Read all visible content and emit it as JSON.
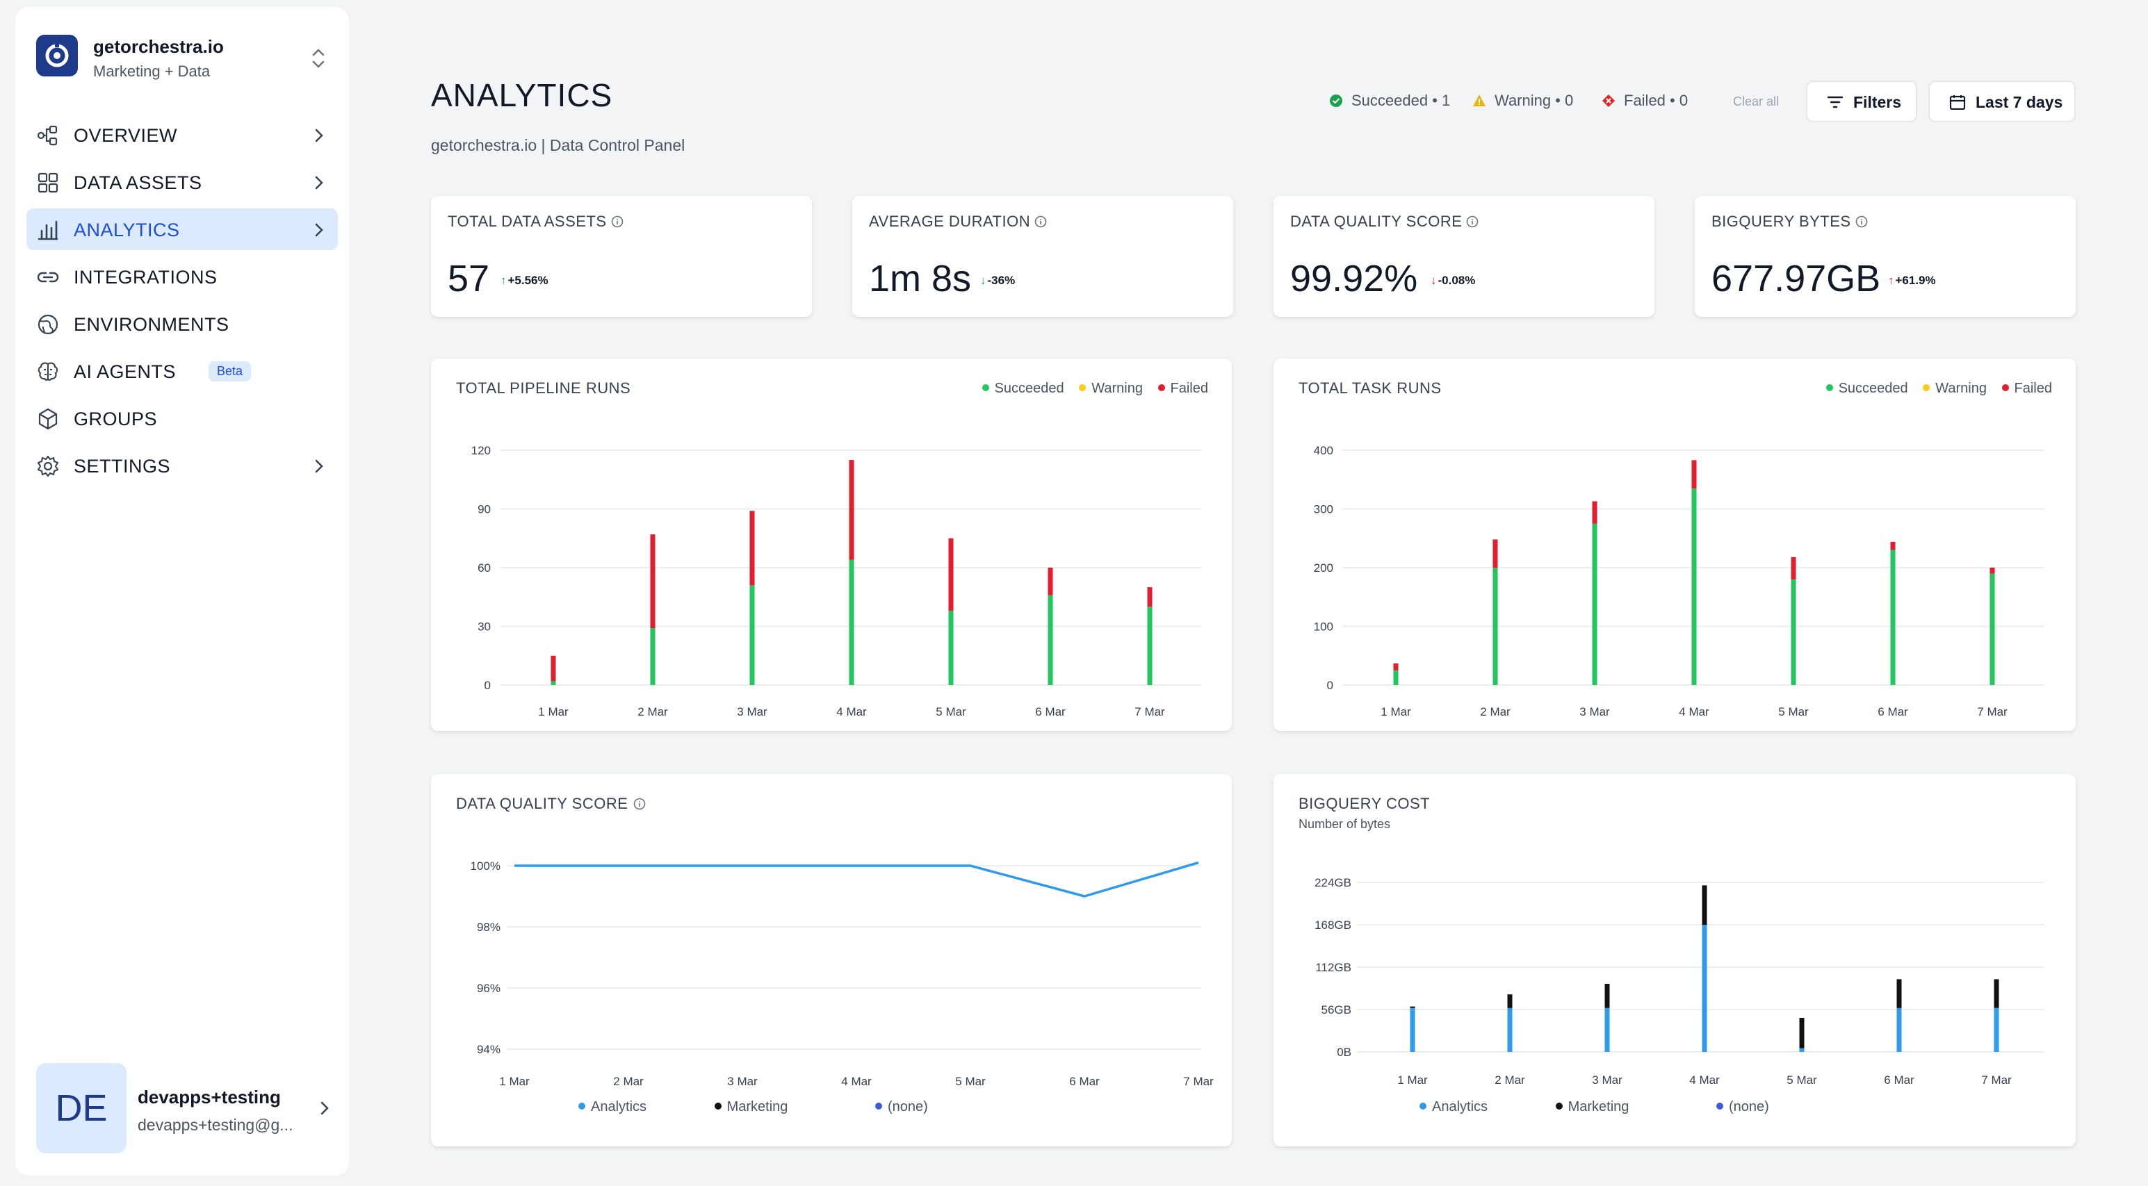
{
  "workspace": {
    "name": "getorchestra.io",
    "subtitle": "Marketing + Data"
  },
  "nav": [
    {
      "label": "OVERVIEW",
      "icon": "workflow-icon",
      "chevron": true,
      "active": false
    },
    {
      "label": "DATA ASSETS",
      "icon": "grid-icon",
      "chevron": true,
      "active": false
    },
    {
      "label": "ANALYTICS",
      "icon": "bar-chart-icon",
      "chevron": true,
      "active": true
    },
    {
      "label": "INTEGRATIONS",
      "icon": "link-icon",
      "chevron": false,
      "active": false
    },
    {
      "label": "ENVIRONMENTS",
      "icon": "globe-icon",
      "chevron": false,
      "active": false
    },
    {
      "label": "AI AGENTS",
      "icon": "brain-icon",
      "chevron": false,
      "active": false,
      "badge": "Beta"
    },
    {
      "label": "GROUPS",
      "icon": "cube-icon",
      "chevron": false,
      "active": false
    },
    {
      "label": "SETTINGS",
      "icon": "gear-icon",
      "chevron": true,
      "active": false
    }
  ],
  "user": {
    "initials": "DE",
    "name": "devapps+testing",
    "email": "devapps+testing@g..."
  },
  "header": {
    "title": "ANALYTICS",
    "subtitle": "getorchestra.io | Data Control Panel",
    "status": [
      {
        "label": "Succeeded • 1",
        "color": "#16a34a",
        "icon": "check-circle-icon"
      },
      {
        "label": "Warning • 0",
        "color": "#eab308",
        "icon": "warning-triangle-icon"
      },
      {
        "label": "Failed • 0",
        "color": "#dc2626",
        "icon": "failed-diamond-icon"
      }
    ],
    "clear_all": "Clear all",
    "filters_label": "Filters",
    "date_range_label": "Last 7 days"
  },
  "kpis": [
    {
      "label": "TOTAL DATA ASSETS",
      "value": "57",
      "delta": "+5.56%",
      "direction": "up",
      "delta_color": "#16a34a"
    },
    {
      "label": "AVERAGE DURATION",
      "value": "1m 8s",
      "delta": "-36%",
      "direction": "down",
      "delta_color": "#16a34a"
    },
    {
      "label": "DATA QUALITY SCORE",
      "value": "99.92%",
      "delta": "-0.08%",
      "direction": "down",
      "delta_color": "#dc2626"
    },
    {
      "label": "BIGQUERY BYTES",
      "value": "677.97GB",
      "delta": "+61.9%",
      "direction": "up",
      "delta_color": "#dc2626"
    }
  ],
  "colors": {
    "succeeded": "#22c55e",
    "warning": "#facc15",
    "failed": "#e11d2e",
    "analytics": "#2f9be8",
    "marketing": "#111111",
    "none": "#3b5bdb",
    "line": "#2f9be8"
  },
  "chart_data": [
    {
      "type": "bar",
      "title": "TOTAL PIPELINE RUNS",
      "stacked": true,
      "categories": [
        "1 Mar",
        "2 Mar",
        "3 Mar",
        "4 Mar",
        "5 Mar",
        "6 Mar",
        "7 Mar"
      ],
      "series": [
        {
          "name": "Succeeded",
          "values": [
            2,
            29,
            51,
            64,
            38,
            46,
            40
          ]
        },
        {
          "name": "Warning",
          "values": [
            0,
            0,
            0,
            0,
            0,
            0,
            0
          ]
        },
        {
          "name": "Failed",
          "values": [
            13,
            48,
            38,
            51,
            37,
            14,
            10
          ]
        }
      ],
      "yticks": [
        "0",
        "30",
        "60",
        "90",
        "120"
      ],
      "ylim": [
        0,
        120
      ],
      "legend": "top-right",
      "grid": true
    },
    {
      "type": "bar",
      "title": "TOTAL TASK RUNS",
      "stacked": true,
      "categories": [
        "1 Mar",
        "2 Mar",
        "3 Mar",
        "4 Mar",
        "5 Mar",
        "6 Mar",
        "7 Mar"
      ],
      "series": [
        {
          "name": "Succeeded",
          "values": [
            25,
            200,
            275,
            335,
            180,
            230,
            190
          ]
        },
        {
          "name": "Warning",
          "values": [
            0,
            0,
            0,
            0,
            0,
            0,
            0
          ]
        },
        {
          "name": "Failed",
          "values": [
            12,
            48,
            38,
            48,
            38,
            14,
            10
          ]
        }
      ],
      "yticks": [
        "0",
        "100",
        "200",
        "300",
        "400"
      ],
      "ylim": [
        0,
        400
      ],
      "legend": "top-right",
      "grid": true
    },
    {
      "type": "line",
      "title": "DATA QUALITY SCORE",
      "categories": [
        "1 Mar",
        "2 Mar",
        "3 Mar",
        "4 Mar",
        "5 Mar",
        "6 Mar",
        "7 Mar"
      ],
      "series": [
        {
          "name": "Analytics",
          "values": [
            100,
            100,
            100,
            100,
            100,
            99.0,
            100.1
          ]
        }
      ],
      "legend_entries": [
        "Analytics",
        "Marketing",
        "(none)"
      ],
      "yticks": [
        "94%",
        "96%",
        "98%",
        "100%"
      ],
      "ylim": [
        94,
        100
      ],
      "legend": "bottom",
      "grid": true
    },
    {
      "type": "bar",
      "title": "BIGQUERY COST",
      "subtitle": "Number of bytes",
      "stacked": true,
      "categories": [
        "1 Mar",
        "2 Mar",
        "3 Mar",
        "4 Mar",
        "5 Mar",
        "6 Mar",
        "7 Mar"
      ],
      "series": [
        {
          "name": "Analytics",
          "values": [
            58,
            58,
            58,
            168,
            5,
            58,
            58
          ]
        },
        {
          "name": "Marketing",
          "values": [
            2,
            18,
            32,
            52,
            40,
            38,
            38
          ]
        },
        {
          "name": "(none)",
          "values": [
            0,
            0,
            0,
            0,
            0,
            0,
            0
          ]
        }
      ],
      "yticks": [
        "0B",
        "56GB",
        "112GB",
        "168GB",
        "224GB"
      ],
      "ylim": [
        0,
        224
      ],
      "legend": "bottom",
      "grid": true
    }
  ]
}
